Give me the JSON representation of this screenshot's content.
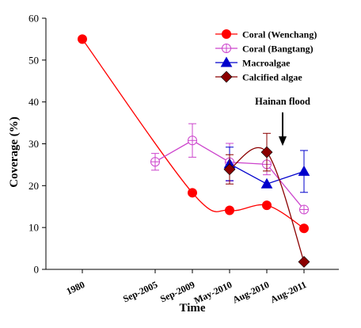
{
  "chart_data": {
    "type": "line",
    "xlabel": "Time",
    "ylabel": "Coverage (%)",
    "ylim": [
      0,
      60
    ],
    "y_ticks": [
      0,
      10,
      20,
      30,
      40,
      50,
      60
    ],
    "categories": [
      "1980",
      "Sep-2005",
      "Sep-2009",
      "May-2010",
      "Aug-2010",
      "Aug-2011"
    ],
    "legend_position": "top-right",
    "grid": false,
    "series": [
      {
        "name": "Coral (Wenchang)",
        "color": "#ff0000",
        "marker": "circle",
        "values": [
          55,
          null,
          18.3,
          14.1,
          15.3,
          9.8
        ],
        "error": [
          null,
          null,
          null,
          null,
          null,
          null
        ],
        "smooth": true
      },
      {
        "name": "Coral (Bangtang)",
        "color": "#cc44cc",
        "marker": "circle-plus",
        "values": [
          null,
          25.7,
          30.8,
          25.6,
          25.1,
          14.3
        ],
        "error": [
          null,
          2.0,
          4.0,
          4.5,
          2.5,
          null
        ],
        "smooth": false
      },
      {
        "name": "Macroalgae",
        "color": "#0000cc",
        "marker": "triangle",
        "values": [
          null,
          null,
          null,
          25.2,
          20.4,
          23.4
        ],
        "error": [
          null,
          null,
          null,
          4.0,
          null,
          5.0
        ],
        "smooth": false
      },
      {
        "name": "Calcified algae",
        "color": "#8b0000",
        "marker": "diamond",
        "values": [
          null,
          null,
          null,
          23.9,
          28.0,
          1.8
        ],
        "error": [
          null,
          null,
          null,
          3.5,
          4.5,
          null
        ],
        "smooth": true
      }
    ],
    "annotations": [
      {
        "text": "Hainan flood",
        "arrow_at_category": "Aug-2010",
        "arrow_from_value": 37.5,
        "arrow_to_value": 29.5
      }
    ]
  }
}
